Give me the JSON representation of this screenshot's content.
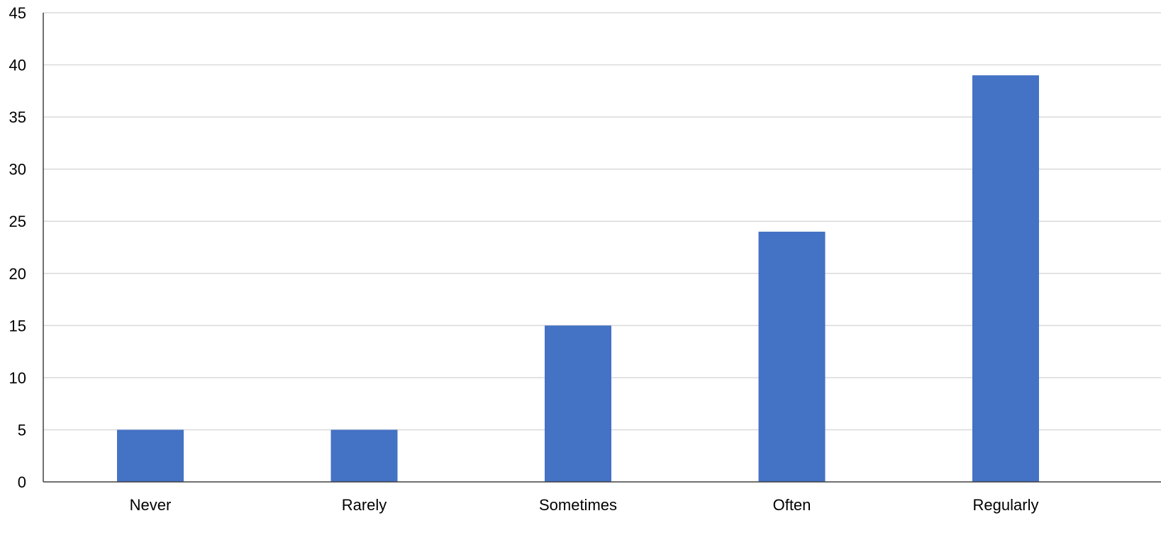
{
  "chart_data": {
    "type": "bar",
    "title": "",
    "xlabel": "",
    "ylabel": "",
    "categories": [
      "Never",
      "Rarely",
      "Sometimes",
      "Often",
      "Regularly"
    ],
    "values": [
      5,
      5,
      15,
      24,
      39
    ],
    "ylim": [
      0,
      45
    ],
    "yticks": [
      0,
      5,
      10,
      15,
      20,
      25,
      30,
      35,
      40,
      45
    ],
    "grid": true,
    "legend": "none",
    "colors": {
      "bar": "#4472c4"
    }
  }
}
